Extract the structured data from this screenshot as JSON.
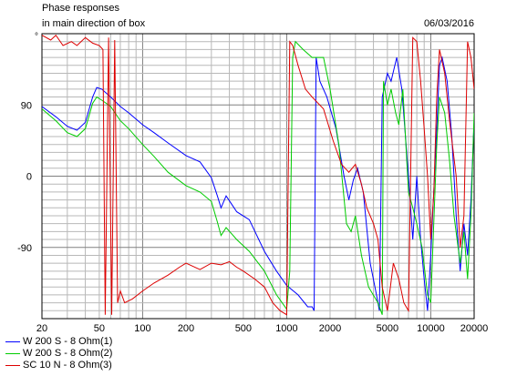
{
  "header": {
    "title_line1": "Phase responses",
    "title_line2": "in main direction of box",
    "date": "06/03/2016"
  },
  "chart_data": {
    "type": "line",
    "title": "Phase responses in main direction of box",
    "xlabel": "",
    "ylabel": "",
    "xscale": "log",
    "xlim": [
      20,
      20000
    ],
    "ylim": [
      -180,
      180
    ],
    "grid": true,
    "x_ticks": [
      20,
      50,
      100,
      200,
      500,
      1000,
      2000,
      5000,
      10000,
      20000
    ],
    "x_tick_labels": [
      "20",
      "50",
      "100",
      "200",
      "500",
      "1000",
      "2000",
      "5000",
      "10000",
      "20000"
    ],
    "y_ticks": [
      90,
      0,
      -90
    ],
    "y_tick_labels": [
      "90",
      "0",
      "-90"
    ],
    "top_marker": "°",
    "legend_position": "bottom-left",
    "series": [
      {
        "name": "W 200 S - 8 Ohm(1)",
        "color": "#0000ff",
        "points": [
          [
            20,
            88
          ],
          [
            25,
            75
          ],
          [
            30,
            63
          ],
          [
            35,
            58
          ],
          [
            40,
            68
          ],
          [
            45,
            100
          ],
          [
            48,
            112
          ],
          [
            52,
            110
          ],
          [
            60,
            100
          ],
          [
            70,
            88
          ],
          [
            80,
            80
          ],
          [
            100,
            65
          ],
          [
            120,
            55
          ],
          [
            150,
            42
          ],
          [
            200,
            26
          ],
          [
            250,
            18
          ],
          [
            300,
            -2
          ],
          [
            330,
            -25
          ],
          [
            350,
            -40
          ],
          [
            380,
            -25
          ],
          [
            450,
            -45
          ],
          [
            550,
            -55
          ],
          [
            700,
            -95
          ],
          [
            850,
            -120
          ],
          [
            1000,
            -138
          ],
          [
            1200,
            -150
          ],
          [
            1400,
            -165
          ],
          [
            1500,
            -165
          ],
          [
            1550,
            -170
          ],
          [
            1600,
            150
          ],
          [
            1700,
            120
          ],
          [
            1900,
            100
          ],
          [
            2200,
            60
          ],
          [
            2500,
            0
          ],
          [
            2700,
            -30
          ],
          [
            2900,
            -5
          ],
          [
            3100,
            10
          ],
          [
            3400,
            -20
          ],
          [
            3800,
            -110
          ],
          [
            4200,
            -150
          ],
          [
            4400,
            -170
          ],
          [
            4600,
            100
          ],
          [
            5000,
            130
          ],
          [
            5300,
            120
          ],
          [
            5800,
            150
          ],
          [
            6300,
            110
          ],
          [
            7000,
            0
          ],
          [
            7500,
            -80
          ],
          [
            8000,
            0
          ],
          [
            8500,
            -80
          ],
          [
            9000,
            -130
          ],
          [
            9500,
            -170
          ],
          [
            10000,
            -100
          ],
          [
            11000,
            60
          ],
          [
            11500,
            140
          ],
          [
            12000,
            150
          ],
          [
            13000,
            120
          ],
          [
            14000,
            50
          ],
          [
            15000,
            -50
          ],
          [
            16000,
            -120
          ],
          [
            17000,
            -60
          ],
          [
            18000,
            -100
          ],
          [
            19000,
            -30
          ],
          [
            20000,
            70
          ]
        ]
      },
      {
        "name": "W 200 S - 8 Ohm(2)",
        "color": "#00cc00",
        "points": [
          [
            20,
            85
          ],
          [
            25,
            70
          ],
          [
            30,
            55
          ],
          [
            35,
            50
          ],
          [
            40,
            60
          ],
          [
            45,
            92
          ],
          [
            48,
            100
          ],
          [
            52,
            96
          ],
          [
            60,
            88
          ],
          [
            70,
            70
          ],
          [
            80,
            60
          ],
          [
            100,
            40
          ],
          [
            120,
            25
          ],
          [
            150,
            5
          ],
          [
            200,
            -12
          ],
          [
            250,
            -20
          ],
          [
            300,
            -32
          ],
          [
            330,
            -58
          ],
          [
            350,
            -75
          ],
          [
            380,
            -65
          ],
          [
            450,
            -80
          ],
          [
            550,
            -95
          ],
          [
            700,
            -120
          ],
          [
            850,
            -150
          ],
          [
            1000,
            -168
          ],
          [
            1050,
            -120
          ],
          [
            1100,
            150
          ],
          [
            1150,
            170
          ],
          [
            1300,
            160
          ],
          [
            1500,
            150
          ],
          [
            1800,
            150
          ],
          [
            2000,
            110
          ],
          [
            2300,
            40
          ],
          [
            2600,
            -60
          ],
          [
            2800,
            -70
          ],
          [
            3000,
            -50
          ],
          [
            3300,
            -100
          ],
          [
            3700,
            -140
          ],
          [
            4300,
            -160
          ],
          [
            4600,
            -175
          ],
          [
            4700,
            120
          ],
          [
            5000,
            90
          ],
          [
            5300,
            110
          ],
          [
            5700,
            80
          ],
          [
            6000,
            65
          ],
          [
            6400,
            110
          ],
          [
            7000,
            -20
          ],
          [
            7500,
            -40
          ],
          [
            8000,
            -60
          ],
          [
            8700,
            -90
          ],
          [
            9500,
            -150
          ],
          [
            10000,
            -160
          ],
          [
            11000,
            40
          ],
          [
            11500,
            100
          ],
          [
            12500,
            80
          ],
          [
            13500,
            20
          ],
          [
            14500,
            -50
          ],
          [
            16000,
            -110
          ],
          [
            17000,
            -70
          ],
          [
            18000,
            -130
          ],
          [
            19000,
            -50
          ],
          [
            20000,
            80
          ]
        ]
      },
      {
        "name": "SC 10 N - 8 Ohm(3)",
        "color": "#dd0000",
        "points": [
          [
            20,
            178
          ],
          [
            23,
            172
          ],
          [
            25,
            178
          ],
          [
            28,
            165
          ],
          [
            32,
            170
          ],
          [
            35,
            165
          ],
          [
            40,
            175
          ],
          [
            45,
            168
          ],
          [
            50,
            165
          ],
          [
            53,
            160
          ],
          [
            55,
            -175
          ],
          [
            58,
            175
          ],
          [
            61,
            -175
          ],
          [
            64,
            172
          ],
          [
            67,
            -160
          ],
          [
            70,
            -145
          ],
          [
            75,
            -160
          ],
          [
            85,
            -155
          ],
          [
            100,
            -145
          ],
          [
            120,
            -135
          ],
          [
            150,
            -125
          ],
          [
            180,
            -115
          ],
          [
            200,
            -110
          ],
          [
            250,
            -118
          ],
          [
            300,
            -110
          ],
          [
            350,
            -112
          ],
          [
            400,
            -108
          ],
          [
            450,
            -115
          ],
          [
            500,
            -120
          ],
          [
            600,
            -130
          ],
          [
            700,
            -140
          ],
          [
            800,
            -160
          ],
          [
            900,
            -170
          ],
          [
            1000,
            -175
          ],
          [
            1050,
            170
          ],
          [
            1100,
            165
          ],
          [
            1200,
            140
          ],
          [
            1350,
            110
          ],
          [
            1500,
            100
          ],
          [
            1800,
            85
          ],
          [
            2100,
            45
          ],
          [
            2400,
            15
          ],
          [
            2700,
            5
          ],
          [
            3000,
            15
          ],
          [
            3300,
            -10
          ],
          [
            3600,
            -40
          ],
          [
            4000,
            -60
          ],
          [
            4300,
            -80
          ],
          [
            4600,
            -140
          ],
          [
            5000,
            -170
          ],
          [
            5500,
            -110
          ],
          [
            6000,
            -130
          ],
          [
            6500,
            -160
          ],
          [
            7000,
            -170
          ],
          [
            7500,
            175
          ],
          [
            8000,
            170
          ],
          [
            8500,
            120
          ],
          [
            9000,
            60
          ],
          [
            9500,
            0
          ],
          [
            10000,
            -80
          ],
          [
            10500,
            -20
          ],
          [
            11000,
            100
          ],
          [
            11500,
            160
          ],
          [
            12500,
            130
          ],
          [
            13500,
            70
          ],
          [
            15000,
            0
          ],
          [
            16000,
            -90
          ],
          [
            17000,
            -50
          ],
          [
            18000,
            170
          ],
          [
            19000,
            150
          ],
          [
            20000,
            110
          ]
        ]
      }
    ]
  }
}
